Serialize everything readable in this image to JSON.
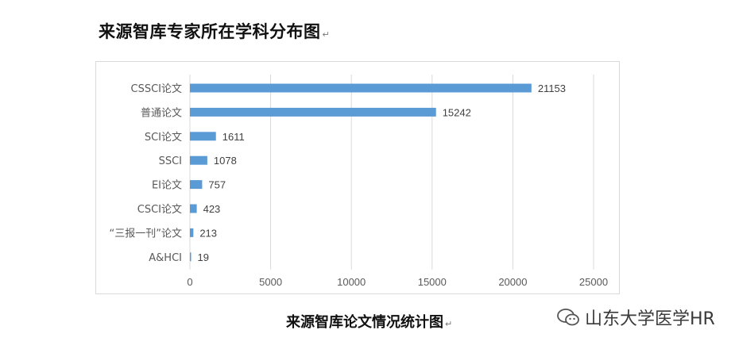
{
  "page": {
    "heading": "来源智库专家所在学科分布图",
    "caption": "来源智库论文情况统计图",
    "return_mark": "↵",
    "brand": "山东大学医学HR",
    "brand_icon": "wechat-official-account-icon"
  },
  "chart_data": {
    "type": "bar",
    "orientation": "horizontal",
    "categories": [
      "CSSCI论文",
      "普通论文",
      "SCI论文",
      "SSCI",
      "EI论文",
      "CSCI论文",
      "“三报一刊”论文",
      "A&HCI"
    ],
    "values": [
      21153,
      15242,
      1611,
      1078,
      757,
      423,
      213,
      19
    ],
    "xlim": [
      0,
      25000
    ],
    "xticks": [
      "0",
      "5000",
      "10000",
      "15000",
      "20000",
      "25000"
    ],
    "grid": true,
    "legend": "none",
    "bar_color": "#5b9bd5",
    "data_labels": true
  }
}
